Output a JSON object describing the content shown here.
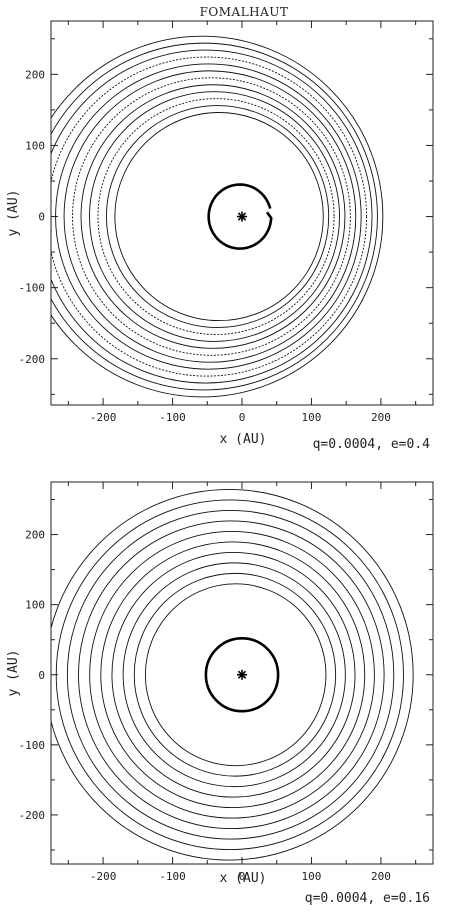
{
  "figure_title": "FOMALHAUT",
  "chart_data": [
    {
      "type": "scatter",
      "title": "FOMALHAUT",
      "xlabel": "x (AU)",
      "ylabel": "y (AU)",
      "annotation": "q=0.0004, e=0.4",
      "xlim": [
        -275,
        275
      ],
      "ylim": [
        -265,
        275
      ],
      "x_ticks": [
        -200,
        -100,
        0,
        100,
        200
      ],
      "y_ticks": [
        -200,
        -100,
        0,
        100,
        200
      ],
      "star": {
        "x": 0,
        "y": 0
      },
      "planet_orbit": {
        "a": 45,
        "e": 0.0,
        "shape": "near-circular loop with small kink at x≈40"
      },
      "belt_rings": [
        {
          "a": 150,
          "e": 0.22
        },
        {
          "a": 160,
          "e": 0.22
        },
        {
          "a": 170,
          "e": 0.22
        },
        {
          "a": 180,
          "e": 0.22
        },
        {
          "a": 190,
          "e": 0.22
        },
        {
          "a": 200,
          "e": 0.22
        },
        {
          "a": 210,
          "e": 0.22
        },
        {
          "a": 220,
          "e": 0.22
        },
        {
          "a": 230,
          "e": 0.22
        },
        {
          "a": 240,
          "e": 0.22
        },
        {
          "a": 250,
          "e": 0.22
        },
        {
          "a": 260,
          "e": 0.22
        }
      ]
    },
    {
      "type": "scatter",
      "xlabel": "x (AU)",
      "ylabel": "y (AU)",
      "annotation": "q=0.0004, e=0.16",
      "xlim": [
        -275,
        275
      ],
      "ylim": [
        -270,
        275
      ],
      "x_ticks": [
        -200,
        -100,
        0,
        100,
        200
      ],
      "y_ticks": [
        -200,
        -100,
        0,
        100,
        200
      ],
      "star": {
        "x": 0,
        "y": 0
      },
      "planet_orbit": {
        "a": 52,
        "e": 0.0
      },
      "belt_rings": [
        {
          "a": 130,
          "e": 0.07
        },
        {
          "a": 145,
          "e": 0.07
        },
        {
          "a": 160,
          "e": 0.07
        },
        {
          "a": 175,
          "e": 0.07
        },
        {
          "a": 190,
          "e": 0.07
        },
        {
          "a": 205,
          "e": 0.07
        },
        {
          "a": 220,
          "e": 0.07
        },
        {
          "a": 235,
          "e": 0.07
        },
        {
          "a": 250,
          "e": 0.07
        },
        {
          "a": 265,
          "e": 0.07
        }
      ]
    }
  ]
}
